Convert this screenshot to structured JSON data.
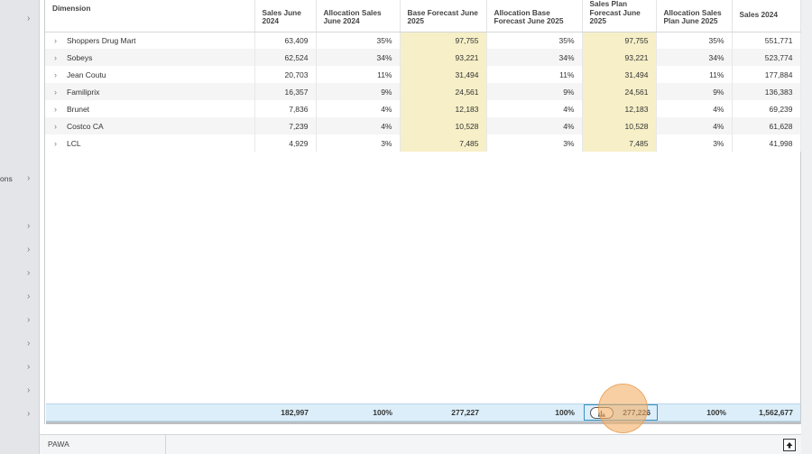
{
  "left_panel": {
    "partial_label": "ons",
    "chevron": "›"
  },
  "columns": [
    {
      "key": "dimension",
      "label": "Dimension"
    },
    {
      "key": "sales_june_2024",
      "label": "Sales June 2024"
    },
    {
      "key": "alloc_sales_june_2024",
      "label": "Allocation Sales June 2024"
    },
    {
      "key": "base_forecast_june_2025",
      "label": "Base Forecast June 2025"
    },
    {
      "key": "alloc_base_forecast_june_2025",
      "label": "Allocation Base Forecast June 2025"
    },
    {
      "key": "sales_plan_forecast_june_2025",
      "label": "Sales Plan Forecast June 2025"
    },
    {
      "key": "alloc_sales_plan_june_2025",
      "label": "Allocation Sales Plan June 2025"
    },
    {
      "key": "sales_2024",
      "label": "Sales 2024"
    }
  ],
  "rows": [
    {
      "name": "Shoppers Drug Mart",
      "values": [
        "63,409",
        "35%",
        "97,755",
        "35%",
        "97,755",
        "35%",
        "551,771"
      ]
    },
    {
      "name": "Sobeys",
      "values": [
        "62,524",
        "34%",
        "93,221",
        "34%",
        "93,221",
        "34%",
        "523,774"
      ]
    },
    {
      "name": "Jean Coutu",
      "values": [
        "20,703",
        "11%",
        "31,494",
        "11%",
        "31,494",
        "11%",
        "177,884"
      ]
    },
    {
      "name": "Familiprix",
      "values": [
        "16,357",
        "9%",
        "24,561",
        "9%",
        "24,561",
        "9%",
        "136,383"
      ]
    },
    {
      "name": "Brunet",
      "values": [
        "7,836",
        "4%",
        "12,183",
        "4%",
        "12,183",
        "4%",
        "69,239"
      ]
    },
    {
      "name": "Costco CA",
      "values": [
        "7,239",
        "4%",
        "10,528",
        "4%",
        "10,528",
        "4%",
        "61,628"
      ]
    },
    {
      "name": "LCL",
      "values": [
        "4,929",
        "3%",
        "7,485",
        "3%",
        "7,485",
        "3%",
        "41,998"
      ]
    }
  ],
  "totals": {
    "sales_june_2024": "182,997",
    "alloc_sales_june_2024": "100%",
    "base_forecast_june_2025": "277,227",
    "alloc_base_forecast_june_2025": "100%",
    "sales_plan_forecast_june_2025": "277,226",
    "alloc_sales_plan_june_2025": "100%",
    "sales_2024": "1,562,677"
  },
  "bottom_bar": {
    "sheet_tab": "PAWA"
  },
  "colors": {
    "highlight_cell": "#f6efc7",
    "totals_row": "#dbeef9",
    "selected_border": "#3a8fc0",
    "focus_circle": "#f3b26a"
  },
  "icons": {
    "row_expand": "chevron-right-icon",
    "totals_cell": "chart-icon",
    "bottom_right": "arrow-up-icon"
  }
}
